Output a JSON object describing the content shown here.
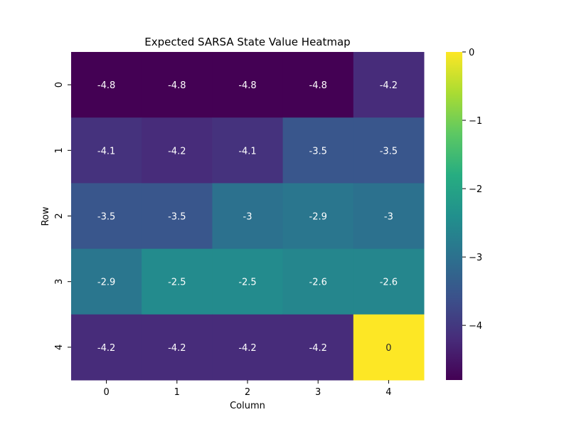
{
  "chart_data": {
    "type": "heatmap",
    "title": "Expected SARSA State Value Heatmap",
    "xlabel": "Column",
    "ylabel": "Row",
    "x_categories": [
      "0",
      "1",
      "2",
      "3",
      "4"
    ],
    "y_categories": [
      "0",
      "1",
      "2",
      "3",
      "4"
    ],
    "values": [
      [
        -4.8,
        -4.8,
        -4.8,
        -4.8,
        -4.2
      ],
      [
        -4.1,
        -4.2,
        -4.1,
        -3.5,
        -3.5
      ],
      [
        -3.5,
        -3.5,
        -3.0,
        -2.9,
        -3.0
      ],
      [
        -2.9,
        -2.5,
        -2.5,
        -2.6,
        -2.6
      ],
      [
        -4.2,
        -4.2,
        -4.2,
        -4.2,
        0
      ]
    ],
    "colormap": "viridis",
    "vmin": -4.8,
    "vmax": 0,
    "annotations": true,
    "colorbar": {
      "ticks": [
        0,
        -1,
        -2,
        -3,
        -4
      ],
      "tick_labels": [
        "0",
        "−1",
        "−2",
        "−3",
        "−4"
      ]
    },
    "grid": false
  }
}
